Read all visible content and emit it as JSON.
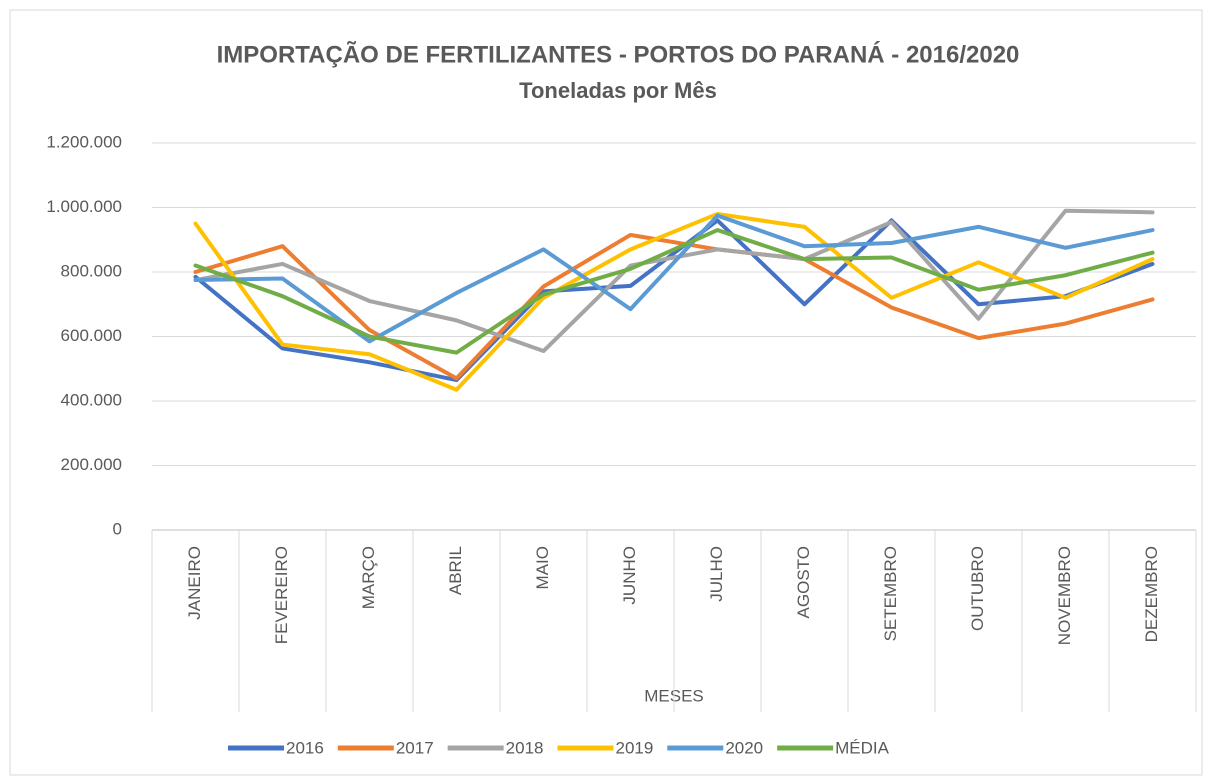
{
  "chart_data": {
    "type": "line",
    "title": "IMPORTAÇÃO DE FERTILIZANTES - PORTOS DO PARANÁ - 2016/2020",
    "subtitle": "Toneladas por Mês",
    "x_label": "MESES",
    "categories": [
      "JANEIRO",
      "FEVEREIRO",
      "MARÇO",
      "ABRIL",
      "MAIO",
      "JUNHO",
      "JULHO",
      "AGOSTO",
      "SETEMBRO",
      "OUTUBRO",
      "NOVEMBRO",
      "DEZEMBRO"
    ],
    "series": [
      {
        "name": "2016",
        "color": "#4472c4",
        "values": [
          785000,
          563000,
          520000,
          465000,
          740000,
          757000,
          960000,
          700000,
          960000,
          700000,
          725000,
          825000
        ]
      },
      {
        "name": "2017",
        "color": "#ed7d31",
        "values": [
          800000,
          880000,
          620000,
          470000,
          755000,
          915000,
          870000,
          840000,
          690000,
          595000,
          640000,
          715000
        ]
      },
      {
        "name": "2018",
        "color": "#a5a5a5",
        "values": [
          775000,
          825000,
          710000,
          650000,
          555000,
          820000,
          870000,
          840000,
          955000,
          655000,
          990000,
          985000
        ]
      },
      {
        "name": "2019",
        "color": "#ffc000",
        "values": [
          950000,
          575000,
          545000,
          435000,
          720000,
          870000,
          980000,
          940000,
          720000,
          830000,
          720000,
          840000
        ]
      },
      {
        "name": "2020",
        "color": "#5b9bd5",
        "values": [
          775000,
          780000,
          585000,
          735000,
          870000,
          685000,
          975000,
          880000,
          890000,
          940000,
          875000,
          930000
        ]
      },
      {
        "name": "MÉDIA",
        "color": "#70ad47",
        "values": [
          820000,
          725000,
          600000,
          550000,
          730000,
          810000,
          930000,
          840000,
          845000,
          745000,
          790000,
          860000
        ]
      }
    ],
    "ylim": [
      0,
      1200000
    ],
    "yticks": [
      0,
      {
        "value": 200000,
        "label": "200.000"
      },
      {
        "value": 400000,
        "label": "400.000"
      },
      {
        "value": 600000,
        "label": "600.000"
      },
      {
        "value": 800000,
        "label": "800.000"
      },
      {
        "value": 1000000,
        "label": "1.000.000"
      },
      {
        "value": 1200000,
        "label": "1.200.000"
      }
    ],
    "grid": true,
    "legend": "bottom"
  }
}
